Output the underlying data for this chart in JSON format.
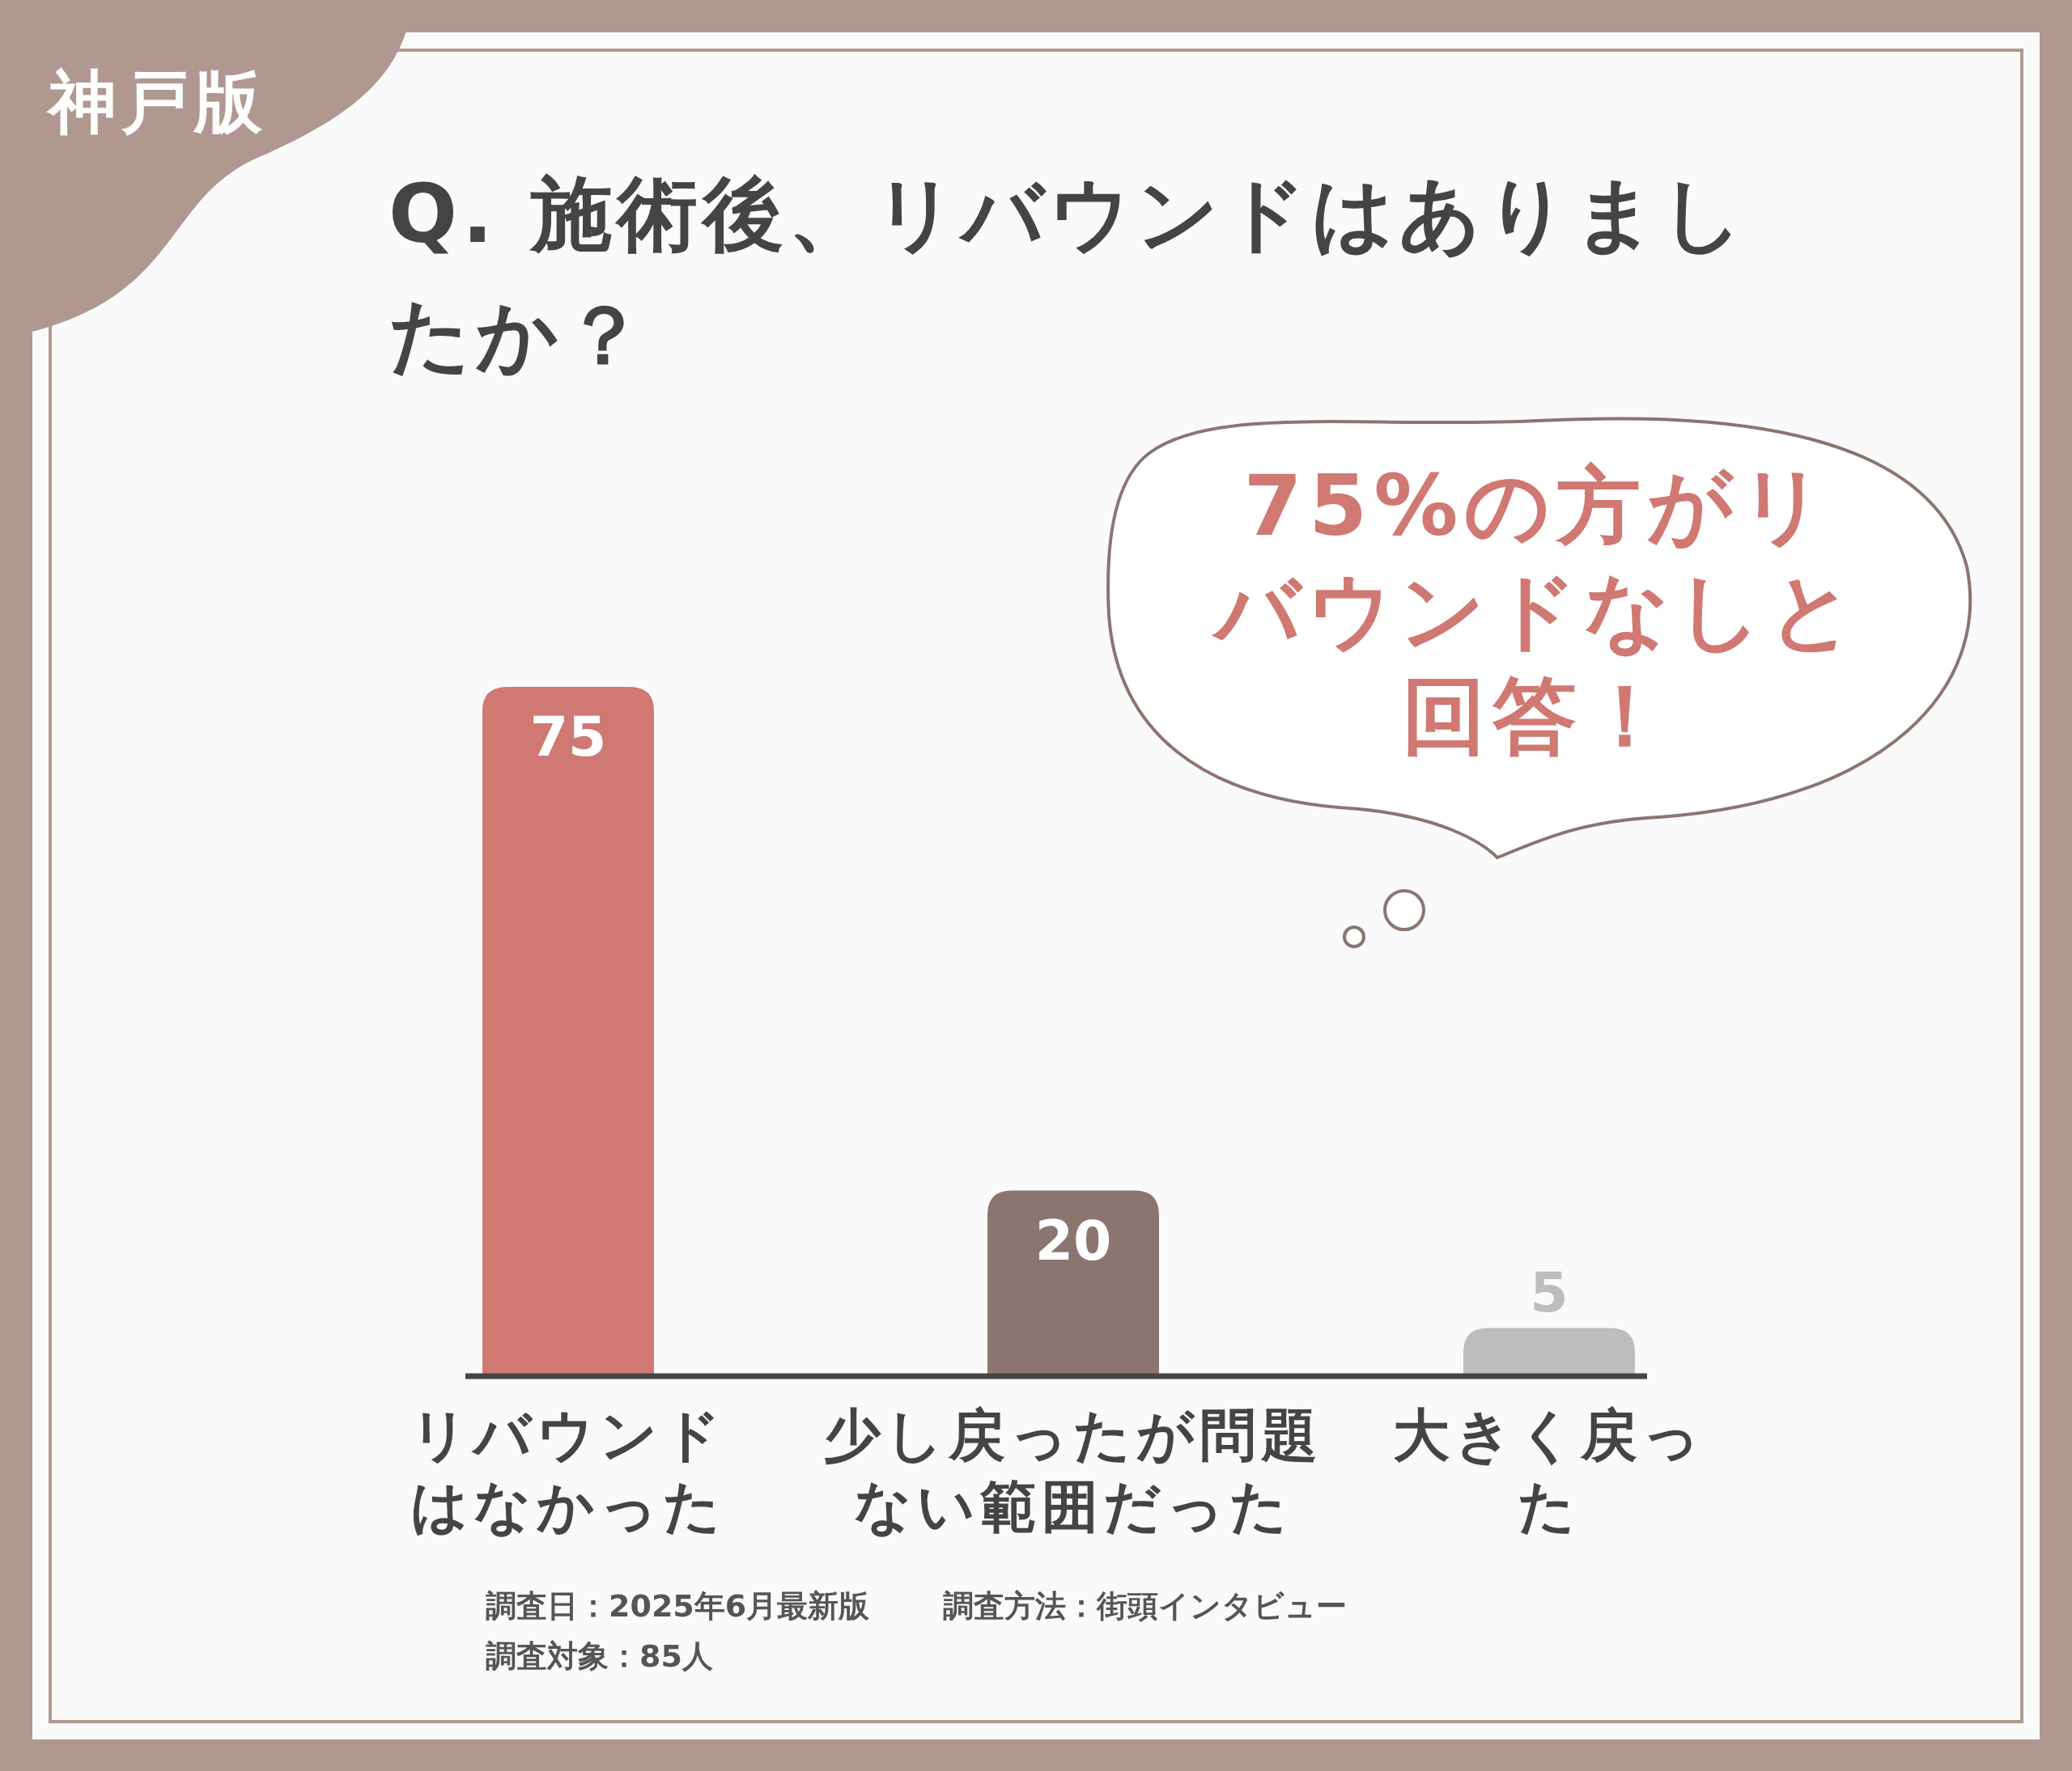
{
  "chart_data": {
    "type": "bar",
    "title": "Q. 施術後、リバウンドはありましたか？",
    "categories": [
      "リバウンドはなかった",
      "少し戻ったが問題ない範囲だった",
      "大きく戻った"
    ],
    "values": [
      75,
      20,
      5
    ],
    "colors": [
      "#d07872",
      "#8b7571",
      "#bdbdbd"
    ],
    "data_labels": true,
    "annotations": [
      "神戸版",
      "75%の方がリバウンドなしと回答！",
      "調査日：2025年6月最新版",
      "調査方法：街頭インタビュー",
      "調査対象：85人"
    ]
  }
}
